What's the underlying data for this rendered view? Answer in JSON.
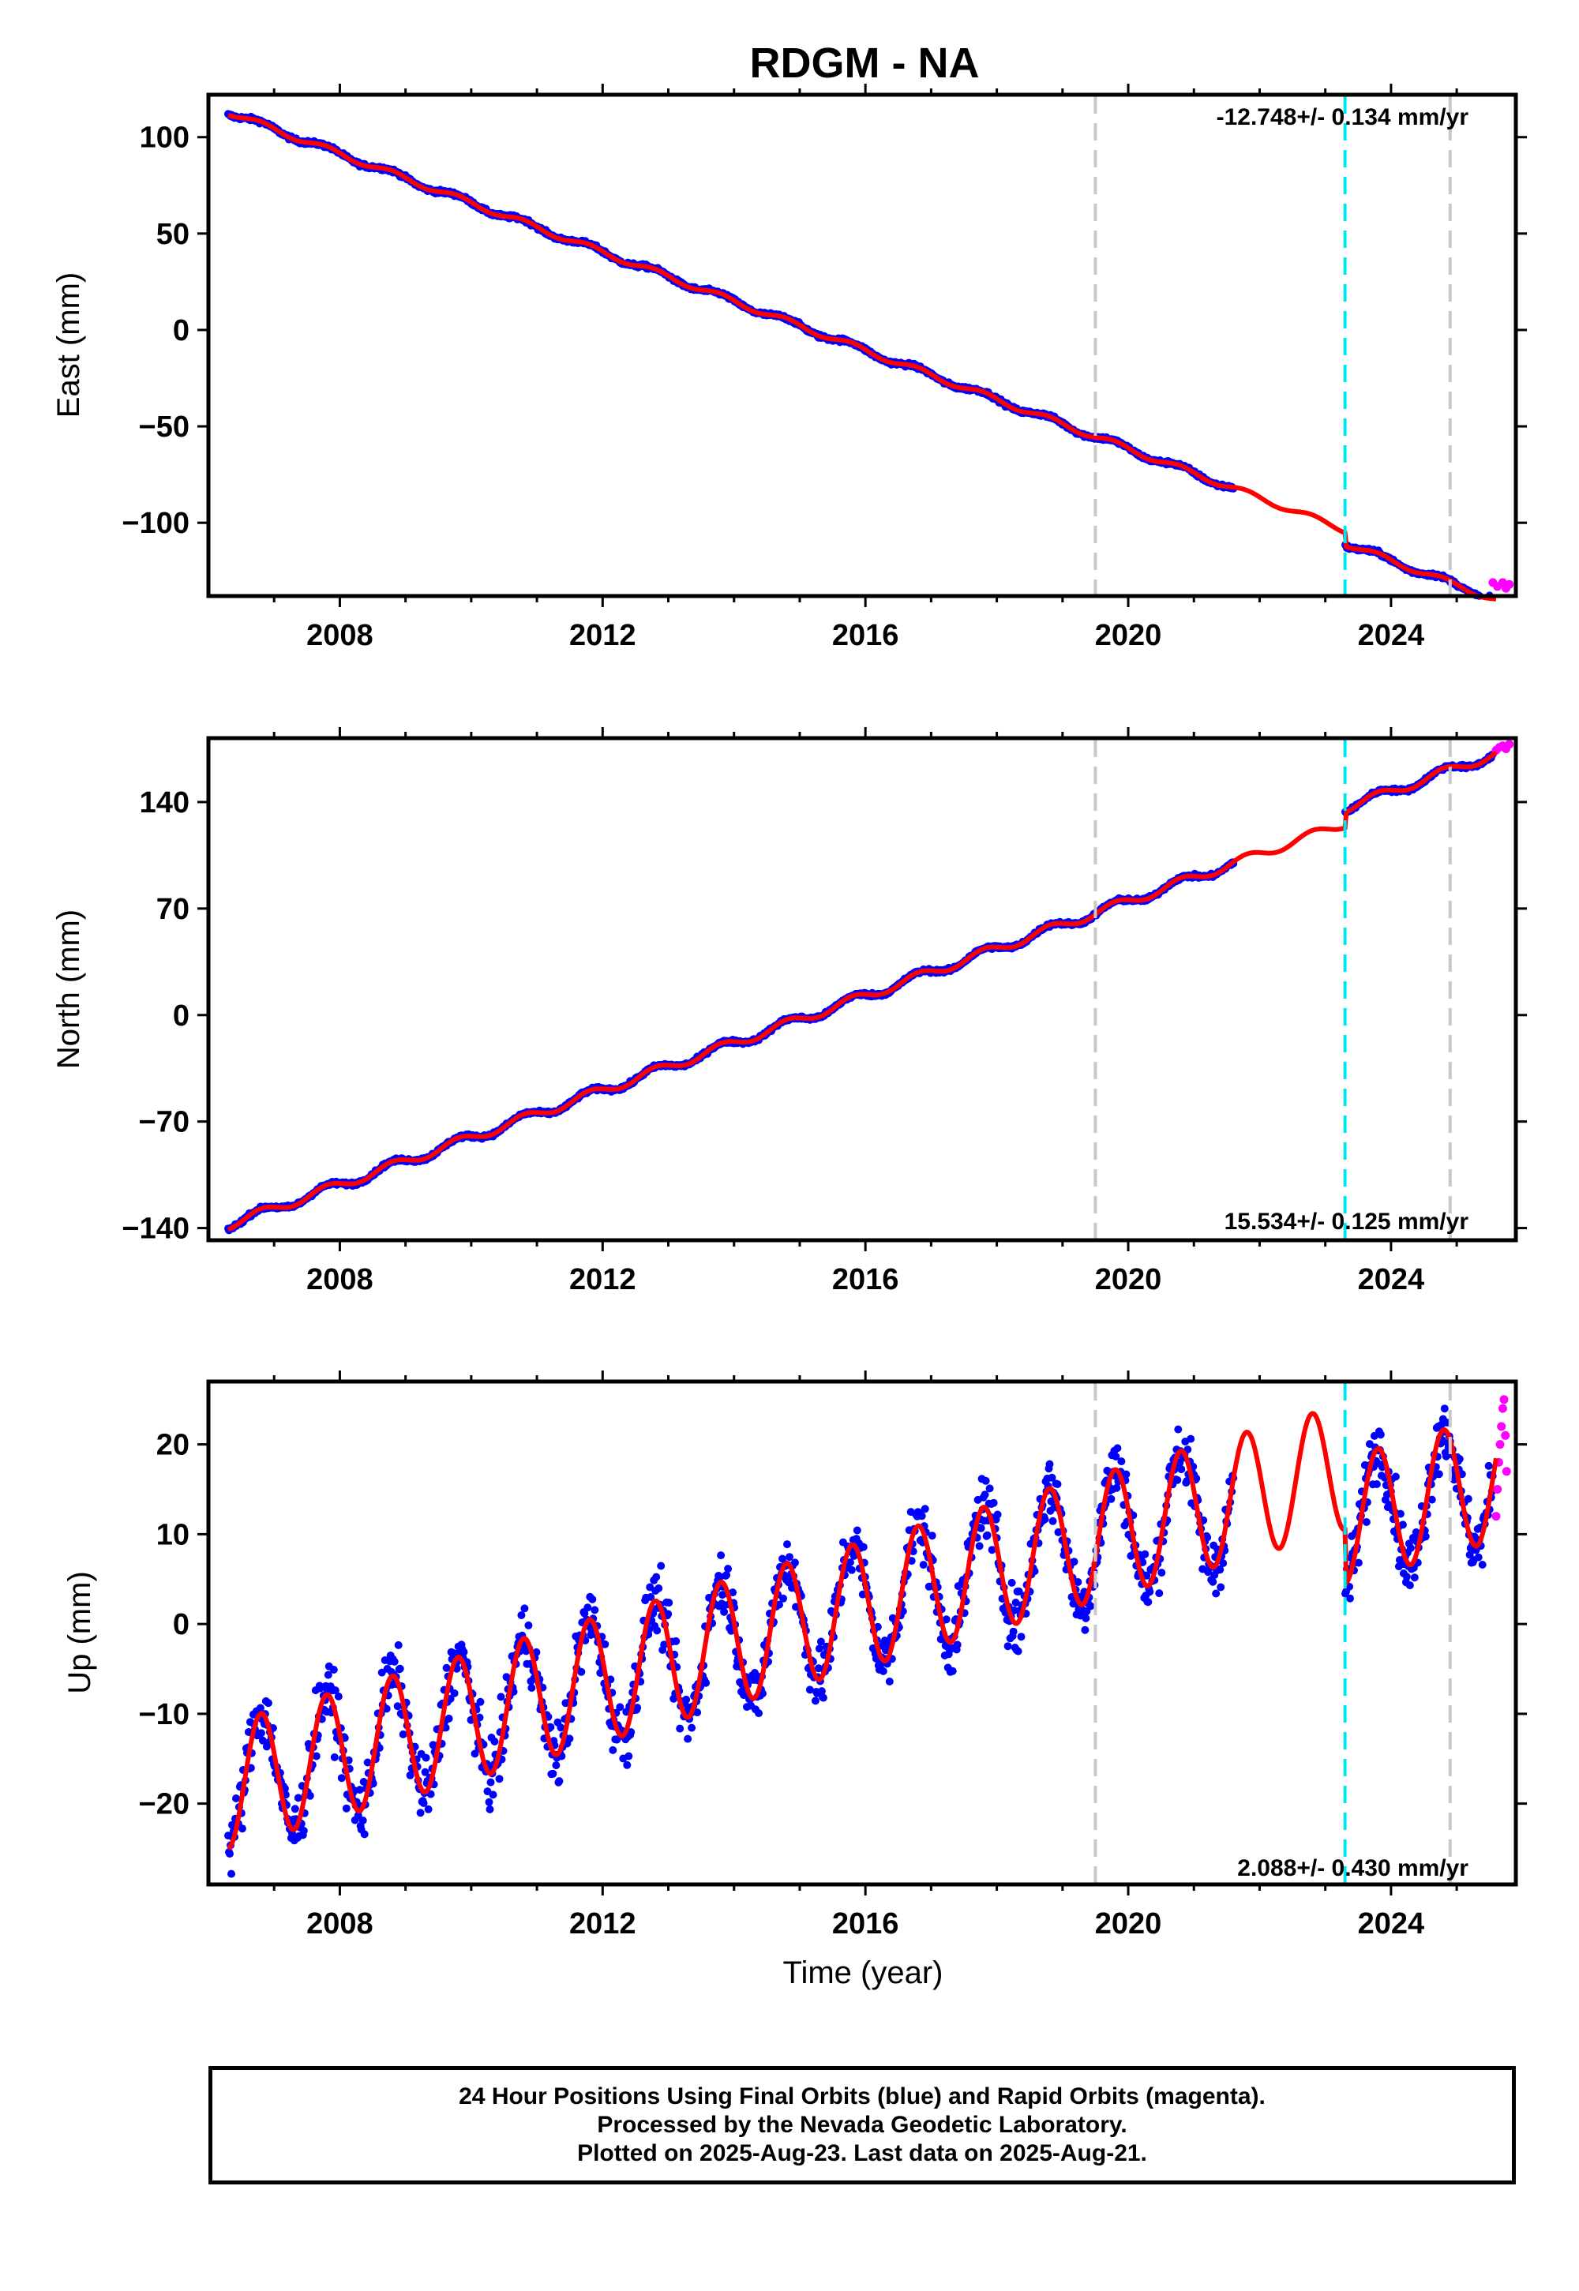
{
  "chart_title": "RDGM - NA",
  "x_axis_label": "Time (year)",
  "footer": {
    "line1": "24 Hour Positions Using Final Orbits (blue) and Rapid Orbits (magenta).",
    "line2": "Processed by the Nevada Geodetic Laboratory.",
    "line3": "Plotted on 2025-Aug-23. Last data on 2025-Aug-21."
  },
  "colors": {
    "final_orbits": "#0000ff",
    "rapid_orbits": "#ff00ff",
    "model": "#ff0000",
    "equipment_change": "#c8c8c8",
    "earthquake": "#00e5ee"
  },
  "chart_data": [
    {
      "type": "scatter",
      "component": "East",
      "ylabel": "East (mm)",
      "xlim": [
        2006.0,
        2025.9
      ],
      "ylim": [
        -138,
        122
      ],
      "xticks": [
        2008,
        2012,
        2016,
        2020,
        2024
      ],
      "xtick_labels": [
        "2008",
        "2012",
        "2016",
        "2020",
        "2024"
      ],
      "yticks": [
        100,
        50,
        0,
        -50,
        -100
      ],
      "ytick_labels": [
        "100",
        "50",
        "0",
        "−50",
        "−100"
      ],
      "rate_label": "-12.748+/- 0.134 mm/yr",
      "rate_mm_per_yr": -12.748,
      "rate_sigma": 0.134,
      "gap": [
        2021.6,
        2023.3
      ],
      "offset_at_2023_3": -7,
      "seasonal_amplitude": 1.5,
      "scatter": 1.0,
      "model_anchor": {
        "x": 2006.3,
        "y": 113
      },
      "rapid_tail": [
        [
          2025.55,
          -131
        ],
        [
          2025.62,
          -133
        ],
        [
          2025.7,
          -131
        ],
        [
          2025.75,
          -134
        ],
        [
          2025.8,
          -132
        ]
      ],
      "series": [
        {
          "name": "Final Orbits",
          "color": "#0000ff"
        },
        {
          "name": "Rapid Orbits",
          "color": "#ff00ff"
        }
      ]
    },
    {
      "type": "scatter",
      "component": "North",
      "ylabel": "North (mm)",
      "xlim": [
        2006.0,
        2025.9
      ],
      "ylim": [
        -148,
        182
      ],
      "xticks": [
        2008,
        2012,
        2016,
        2020,
        2024
      ],
      "xtick_labels": [
        "2008",
        "2012",
        "2016",
        "2020",
        "2024"
      ],
      "yticks": [
        140,
        70,
        0,
        -70,
        -140
      ],
      "ytick_labels": [
        "140",
        "70",
        "0",
        "−70",
        "−140"
      ],
      "rate_label": "15.534+/- 0.125 mm/yr",
      "rate_mm_per_yr": 15.534,
      "rate_sigma": 0.125,
      "gap": [
        2021.6,
        2023.3
      ],
      "offset_at_2023_3": 10,
      "seasonal_amplitude": 3,
      "scatter": 1.2,
      "model_anchor": {
        "x": 2006.3,
        "y": -138
      },
      "rapid_tail": [
        [
          2025.6,
          174
        ],
        [
          2025.65,
          176
        ],
        [
          2025.7,
          177
        ],
        [
          2025.75,
          175
        ],
        [
          2025.8,
          178
        ]
      ],
      "series": [
        {
          "name": "Final Orbits",
          "color": "#0000ff"
        },
        {
          "name": "Rapid Orbits",
          "color": "#ff00ff"
        }
      ]
    },
    {
      "type": "scatter",
      "component": "Up",
      "ylabel": "Up (mm)",
      "xlim": [
        2006.0,
        2025.9
      ],
      "ylim": [
        -29,
        27
      ],
      "xticks": [
        2008,
        2012,
        2016,
        2020,
        2024
      ],
      "xtick_labels": [
        "2008",
        "2012",
        "2016",
        "2020",
        "2024"
      ],
      "yticks": [
        20,
        10,
        0,
        -10,
        -20
      ],
      "ytick_labels": [
        "20",
        "10",
        "0",
        "−10",
        "−20"
      ],
      "rate_label": "2.088+/- 0.430 mm/yr",
      "rate_mm_per_yr": 2.088,
      "rate_sigma": 0.43,
      "gap": [
        2021.6,
        2023.3
      ],
      "offset_at_2023_3": -6,
      "seasonal_amplitude": 7,
      "scatter": 3.5,
      "model_anchor": {
        "x": 2006.3,
        "y": -18
      },
      "rapid_tail": [
        [
          2025.6,
          12
        ],
        [
          2025.62,
          15
        ],
        [
          2025.64,
          18
        ],
        [
          2025.66,
          20
        ],
        [
          2025.68,
          22
        ],
        [
          2025.7,
          24
        ],
        [
          2025.72,
          25
        ],
        [
          2025.74,
          21
        ],
        [
          2025.76,
          17
        ]
      ],
      "series": [
        {
          "name": "Final Orbits",
          "color": "#0000ff"
        },
        {
          "name": "Rapid Orbits",
          "color": "#ff00ff"
        }
      ]
    }
  ],
  "event_lines": {
    "equipment_changes": [
      2019.5,
      2024.9
    ],
    "earthquakes": [
      2023.3
    ]
  }
}
